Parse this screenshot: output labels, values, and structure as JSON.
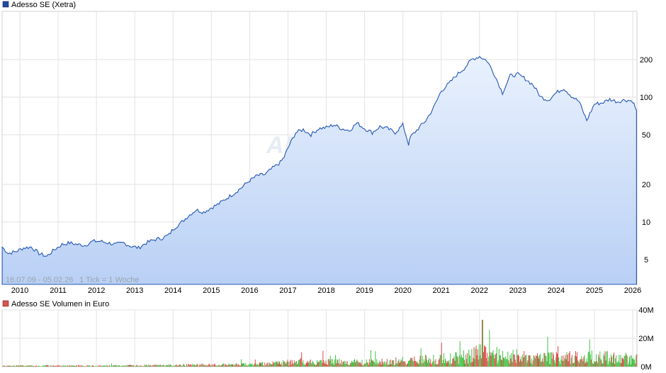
{
  "chart_data": [
    {
      "type": "area",
      "title": "Adesso SE (Xetra)",
      "legend_color": "#1f4aa0",
      "line_color": "#2457b5",
      "fill_top": "#e9f1fd",
      "fill_bottom": "#b9d0f5",
      "yscale": "log",
      "yticks": [
        5,
        10,
        20,
        50,
        100,
        200
      ],
      "xticks": [
        "2010",
        "2011",
        "2012",
        "2013",
        "2014",
        "2015",
        "2016",
        "2017",
        "2018",
        "2019",
        "2020",
        "2021",
        "2022",
        "2023",
        "2024",
        "2025",
        "2026"
      ],
      "date_range_label": "16.07.09 - 05.02.26",
      "tick_label": "1 Tick = 1 Woche",
      "watermark": "ARIVA.DE",
      "x": [
        2009.54,
        2009.7,
        2009.9,
        2010.1,
        2010.3,
        2010.5,
        2010.7,
        2010.9,
        2011.1,
        2011.3,
        2011.5,
        2011.7,
        2011.9,
        2012.1,
        2012.3,
        2012.5,
        2012.7,
        2012.9,
        2013.1,
        2013.3,
        2013.5,
        2013.7,
        2013.9,
        2014.0,
        2014.2,
        2014.4,
        2014.6,
        2014.8,
        2015.0,
        2015.2,
        2015.4,
        2015.6,
        2015.8,
        2016.0,
        2016.2,
        2016.4,
        2016.6,
        2016.8,
        2016.9,
        2017.0,
        2017.2,
        2017.4,
        2017.6,
        2017.8,
        2018.0,
        2018.2,
        2018.4,
        2018.6,
        2018.8,
        2019.0,
        2019.2,
        2019.4,
        2019.6,
        2019.8,
        2020.0,
        2020.15,
        2020.2,
        2020.4,
        2020.6,
        2020.8,
        2021.0,
        2021.2,
        2021.4,
        2021.6,
        2021.8,
        2022.0,
        2022.2,
        2022.4,
        2022.6,
        2022.8,
        2023.0,
        2023.2,
        2023.4,
        2023.6,
        2023.8,
        2024.0,
        2024.2,
        2024.4,
        2024.6,
        2024.8,
        2025.0,
        2025.2,
        2025.4,
        2025.6,
        2025.8,
        2026.0,
        2026.1
      ],
      "y": [
        6.3,
        5.6,
        5.8,
        6.2,
        6.3,
        5.6,
        5.3,
        6.0,
        6.6,
        6.8,
        6.6,
        6.5,
        7.0,
        7.0,
        6.8,
        6.6,
        6.8,
        6.4,
        6.2,
        6.8,
        7.2,
        7.4,
        7.9,
        8.8,
        9.8,
        11.2,
        12.5,
        12.0,
        13.0,
        14.0,
        15.5,
        17.0,
        19.0,
        21.5,
        23.5,
        24.0,
        27.0,
        30.0,
        33.0,
        39.0,
        52.0,
        55.0,
        50.0,
        56.0,
        57.0,
        60.0,
        56.0,
        54.0,
        62.0,
        56.0,
        52.0,
        58.0,
        56.0,
        52.0,
        60.0,
        42.0,
        48.0,
        56.0,
        65.0,
        82.0,
        112.0,
        128.0,
        150.0,
        170.0,
        200.0,
        212.0,
        195.0,
        150.0,
        108.0,
        148.0,
        152.0,
        140.0,
        125.0,
        100.0,
        95.0,
        108.0,
        118.0,
        102.0,
        92.0,
        65.0,
        88.0,
        90.0,
        96.0,
        92.0,
        95.0,
        93.0,
        78.0
      ]
    },
    {
      "type": "bar",
      "title": "Adesso SE Volumen in Euro",
      "legend_color": "#d9534f",
      "up_color": "#44c244",
      "down_color": "#e04a4a",
      "yticks": [
        "0M",
        "20M",
        "40M"
      ],
      "ylim": [
        0,
        40
      ],
      "unit": "M Euro",
      "x": [
        2009.5,
        2010.0,
        2011.0,
        2012.0,
        2013.0,
        2014.0,
        2015.0,
        2016.0,
        2016.5,
        2017.0,
        2017.5,
        2018.0,
        2019.0,
        2020.0,
        2020.3,
        2020.9,
        2021.3,
        2021.8,
        2022.0,
        2022.5,
        2023.0,
        2024.0,
        2024.8,
        2025.0,
        2025.5,
        2026.1
      ],
      "values": [
        0.5,
        0.6,
        0.7,
        0.6,
        0.8,
        1.0,
        1.3,
        1.6,
        2.0,
        3.0,
        3.5,
        3.3,
        3.0,
        3.4,
        4.5,
        5.5,
        6.5,
        8.5,
        9.5,
        8.0,
        6.5,
        6.2,
        6.8,
        6.5,
        6.0,
        5.5
      ]
    }
  ]
}
